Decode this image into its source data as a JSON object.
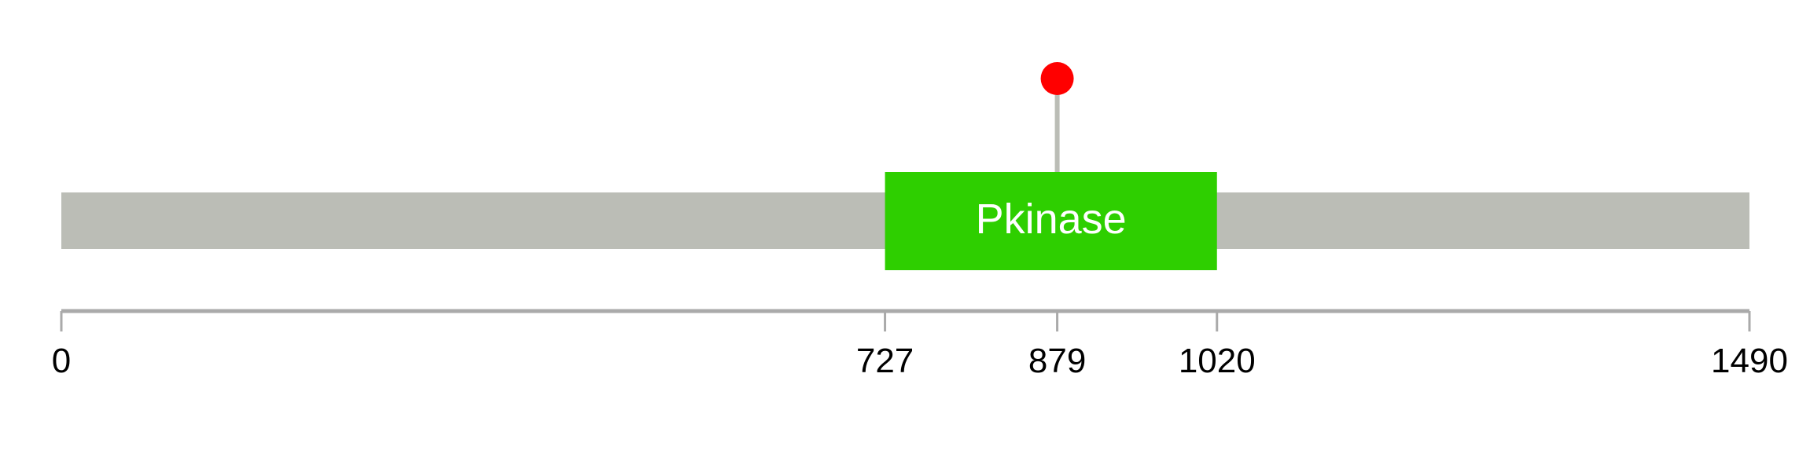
{
  "protein": {
    "length": 1490,
    "backbone_color": "#bbbdb6"
  },
  "domains": [
    {
      "name": "Pkinase",
      "start": 727,
      "end": 1020,
      "color": "#2ecf00",
      "label_color": "#ffffff"
    }
  ],
  "mutations": [
    {
      "position": 879,
      "color": "#ff0000",
      "stem_color": "#bbbdb6"
    }
  ],
  "axis": {
    "ticks": [
      {
        "value": 0,
        "label": "0"
      },
      {
        "value": 727,
        "label": "727"
      },
      {
        "value": 879,
        "label": "879"
      },
      {
        "value": 1020,
        "label": "1020"
      },
      {
        "value": 1490,
        "label": "1490"
      }
    ],
    "color": "#aaaaaa"
  }
}
